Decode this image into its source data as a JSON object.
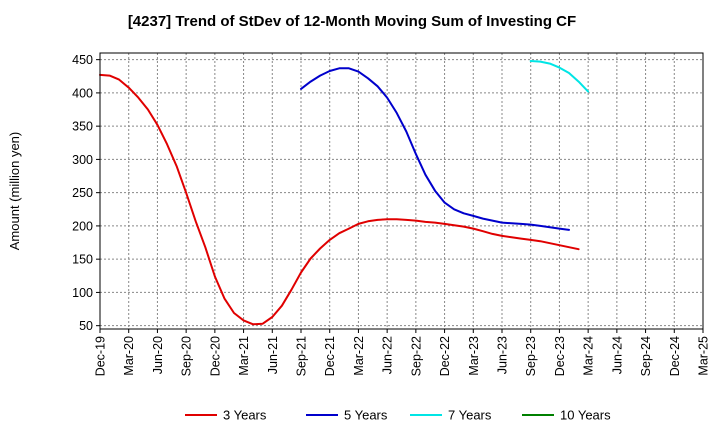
{
  "chart_data": {
    "type": "line",
    "title": "[4237]  Trend of StDev of 12-Month Moving Sum of Investing CF",
    "ylabel": "Amount (million yen)",
    "xlabel": "",
    "ylim": [
      45,
      460
    ],
    "yticks": [
      50,
      100,
      150,
      200,
      250,
      300,
      350,
      400,
      450
    ],
    "grid": true,
    "legend_position": "bottom",
    "categories": [
      "Dec-19",
      "Mar-20",
      "Jun-20",
      "Sep-20",
      "Dec-20",
      "Mar-21",
      "Jun-21",
      "Sep-21",
      "Dec-21",
      "Mar-22",
      "Jun-22",
      "Sep-22",
      "Dec-22",
      "Mar-23",
      "Jun-23",
      "Sep-23",
      "Dec-23",
      "Mar-24",
      "Jun-24",
      "Sep-24",
      "Dec-24",
      "Mar-25"
    ],
    "series": [
      {
        "name": "3 Years",
        "color": "#e00000",
        "points": [
          [
            0,
            427
          ],
          [
            1,
            426
          ],
          [
            2,
            420
          ],
          [
            3,
            408
          ],
          [
            4,
            393
          ],
          [
            5,
            375
          ],
          [
            6,
            352
          ],
          [
            7,
            323
          ],
          [
            8,
            290
          ],
          [
            9,
            250
          ],
          [
            10,
            207
          ],
          [
            11,
            168
          ],
          [
            12,
            124
          ],
          [
            13,
            91
          ],
          [
            14,
            69
          ],
          [
            15,
            58
          ],
          [
            16,
            52
          ],
          [
            17,
            53
          ],
          [
            18,
            63
          ],
          [
            19,
            80
          ],
          [
            20,
            104
          ],
          [
            21,
            130
          ],
          [
            22,
            151
          ],
          [
            23,
            166
          ],
          [
            24,
            179
          ],
          [
            25,
            189
          ],
          [
            26,
            196
          ],
          [
            27,
            203
          ],
          [
            28,
            207
          ],
          [
            29,
            209
          ],
          [
            30,
            210
          ],
          [
            31,
            210
          ],
          [
            32,
            209
          ],
          [
            33,
            208
          ],
          [
            34,
            206
          ],
          [
            35,
            205
          ],
          [
            36,
            203
          ],
          [
            37,
            201
          ],
          [
            38,
            199
          ],
          [
            39,
            196
          ],
          [
            40,
            192
          ],
          [
            41,
            188
          ],
          [
            42,
            185
          ],
          [
            43,
            183
          ],
          [
            44,
            181
          ],
          [
            45,
            179
          ],
          [
            46,
            177
          ],
          [
            47,
            174
          ],
          [
            48,
            171
          ],
          [
            49,
            168
          ],
          [
            50,
            165
          ]
        ]
      },
      {
        "name": "5 Years",
        "color": "#0000cc",
        "points": [
          [
            21,
            406
          ],
          [
            22,
            417
          ],
          [
            23,
            426
          ],
          [
            24,
            433
          ],
          [
            25,
            437
          ],
          [
            26,
            437
          ],
          [
            27,
            432
          ],
          [
            28,
            422
          ],
          [
            29,
            410
          ],
          [
            30,
            393
          ],
          [
            31,
            370
          ],
          [
            32,
            342
          ],
          [
            33,
            308
          ],
          [
            34,
            277
          ],
          [
            35,
            253
          ],
          [
            36,
            235
          ],
          [
            37,
            225
          ],
          [
            38,
            219
          ],
          [
            39,
            215
          ],
          [
            40,
            211
          ],
          [
            41,
            208
          ],
          [
            42,
            205
          ],
          [
            43,
            204
          ],
          [
            44,
            203
          ],
          [
            45,
            202
          ],
          [
            46,
            200
          ],
          [
            47,
            198
          ],
          [
            48,
            196
          ],
          [
            49,
            194
          ]
        ]
      },
      {
        "name": "7 Years",
        "color": "#00e5e5",
        "points": [
          [
            45,
            448
          ],
          [
            46,
            447
          ],
          [
            47,
            444
          ],
          [
            48,
            438
          ],
          [
            49,
            430
          ],
          [
            50,
            417
          ],
          [
            51,
            402
          ]
        ]
      },
      {
        "name": "10 Years",
        "color": "#008000",
        "points": []
      }
    ]
  }
}
